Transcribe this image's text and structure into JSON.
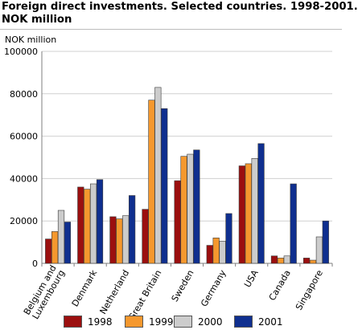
{
  "title_line1": "Foreign direct investments. Selected countries. 1998-2001.",
  "title_line2": "NOK million",
  "colors": {
    "1998": "#9b0f0f",
    "1999": "#f5982e",
    "2000": "#cccccc",
    "2001": "#0f2f8f",
    "grid": "#d0d0d0",
    "axis": "#7f7f7f"
  },
  "chart_data": {
    "type": "bar",
    "title": "Foreign direct investments. Selected countries. 1998-2001. NOK million",
    "ylabel": "NOK million",
    "xlabel": "",
    "ylim": [
      0,
      100000
    ],
    "yticks": [
      "0",
      "20000",
      "40000",
      "60000",
      "80000",
      "100000"
    ],
    "grid": true,
    "legend_position": "bottom",
    "categories": [
      "Belgium and Luxembourg",
      "Denmark",
      "Netherland",
      "Great Britain",
      "Sweden",
      "Germany",
      "USA",
      "Canada",
      "Singapore"
    ],
    "category_label_lines": [
      [
        "Belgium and",
        "Luxembourg"
      ],
      [
        "Denmark"
      ],
      [
        "Netherland"
      ],
      [
        "Great Britain"
      ],
      [
        "Sweden"
      ],
      [
        "Germany"
      ],
      [
        "USA"
      ],
      [
        "Canada"
      ],
      [
        "Singapore"
      ]
    ],
    "series": [
      {
        "name": "1998",
        "values": [
          11500,
          36000,
          22000,
          25500,
          39000,
          8500,
          46000,
          3500,
          2500
        ]
      },
      {
        "name": "1999",
        "values": [
          15000,
          35000,
          21000,
          77000,
          50500,
          12000,
          47000,
          2500,
          1500
        ]
      },
      {
        "name": "2000",
        "values": [
          25000,
          37500,
          22500,
          83000,
          51500,
          10500,
          49500,
          3500,
          12500
        ]
      },
      {
        "name": "2001",
        "values": [
          19500,
          39500,
          32000,
          73000,
          53500,
          23500,
          56500,
          37500,
          20000
        ]
      }
    ]
  }
}
